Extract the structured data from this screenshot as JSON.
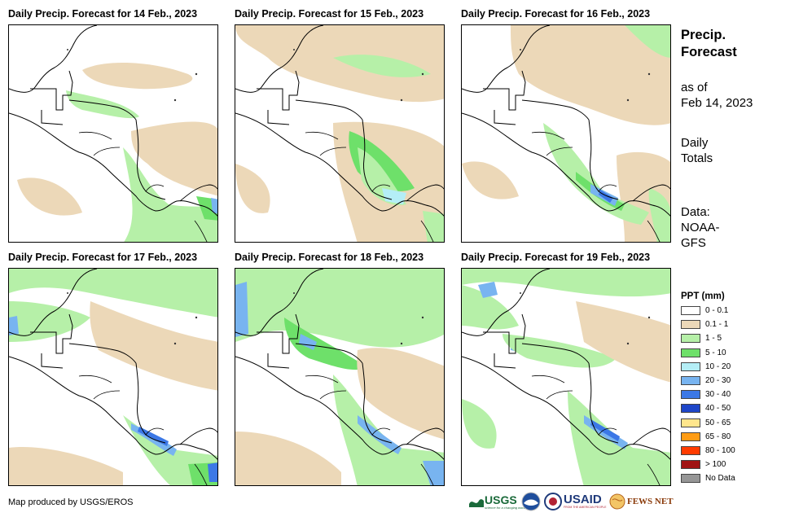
{
  "panels": [
    {
      "title": "Daily Precip. Forecast for 14 Feb., 2023"
    },
    {
      "title": "Daily Precip. Forecast for 15 Feb., 2023"
    },
    {
      "title": "Daily Precip. Forecast for 16 Feb., 2023"
    },
    {
      "title": "Daily Precip. Forecast for 17 Feb., 2023"
    },
    {
      "title": "Daily Precip. Forecast for 18 Feb., 2023"
    },
    {
      "title": "Daily Precip. Forecast for 19 Feb., 2023"
    }
  ],
  "info": {
    "heading_line1": "Precip.",
    "heading_line2": "Forecast",
    "asof_line1": "as of",
    "asof_line2": "Feb 14, 2023",
    "totals_line1": "Daily",
    "totals_line2": "Totals",
    "data_line1": "Data:",
    "data_line2": "NOAA-",
    "data_line3": "GFS"
  },
  "legend": {
    "title": "PPT (mm)",
    "items": [
      {
        "label": "0 - 0.1",
        "color": "#ffffff"
      },
      {
        "label": "0.1 - 1",
        "color": "#ecd8b8"
      },
      {
        "label": "1 - 5",
        "color": "#b6f0a8"
      },
      {
        "label": "5 - 10",
        "color": "#6ee06a"
      },
      {
        "label": "10 - 20",
        "color": "#b4eef6"
      },
      {
        "label": "20 - 30",
        "color": "#78b4f0"
      },
      {
        "label": "30 - 40",
        "color": "#3c78e6"
      },
      {
        "label": "40 - 50",
        "color": "#1e46c8"
      },
      {
        "label": "50 - 65",
        "color": "#ffe68c"
      },
      {
        "label": "65 - 80",
        "color": "#ff9c14"
      },
      {
        "label": "80 - 100",
        "color": "#ff3c00"
      },
      {
        "label": "> 100",
        "color": "#a01414"
      },
      {
        "label": "No Data",
        "color": "#969696"
      }
    ]
  },
  "credit": "Map produced by USGS/EROS",
  "logos": {
    "usgs": "USGS",
    "usgs_tagline": "science for a changing world",
    "usaid": "USAID",
    "usaid_tagline": "FROM THE AMERICAN PEOPLE",
    "fewsnet": "FEWS NET"
  }
}
